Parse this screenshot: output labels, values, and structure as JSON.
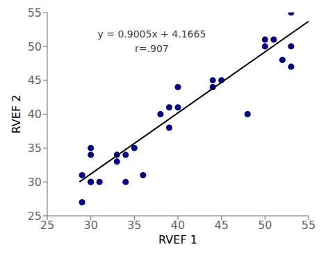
{
  "chart_data": {
    "type": "scatter",
    "xlabel": "RVEF 1",
    "ylabel": "RVEF 2",
    "xlim": [
      25,
      55
    ],
    "ylim": [
      25,
      55
    ],
    "xticks": [
      25,
      30,
      35,
      40,
      45,
      50,
      55
    ],
    "yticks": [
      25,
      30,
      35,
      40,
      45,
      50,
      55
    ],
    "grid": false,
    "annotations": [
      "y = 0.9005x + 4.1665",
      "r=.907"
    ],
    "series": [
      {
        "type": "scatter",
        "color": "#00008B",
        "x": [
          29,
          29,
          30,
          30,
          30,
          31,
          30,
          33,
          33,
          34,
          34,
          35,
          36,
          38,
          39,
          39,
          40,
          40,
          44,
          44,
          45,
          48,
          50,
          50,
          51,
          52,
          53,
          53,
          53
        ],
        "y": [
          31,
          27,
          30,
          34,
          35,
          30,
          30,
          33,
          34,
          34,
          30,
          35,
          31,
          40,
          38,
          41,
          41,
          44,
          45,
          44,
          45,
          40,
          51,
          50,
          51,
          48,
          47,
          55,
          50
        ]
      },
      {
        "type": "line",
        "color": "#000000",
        "x": [
          28.7,
          55
        ],
        "y": [
          30.01085,
          53.694
        ]
      }
    ]
  }
}
